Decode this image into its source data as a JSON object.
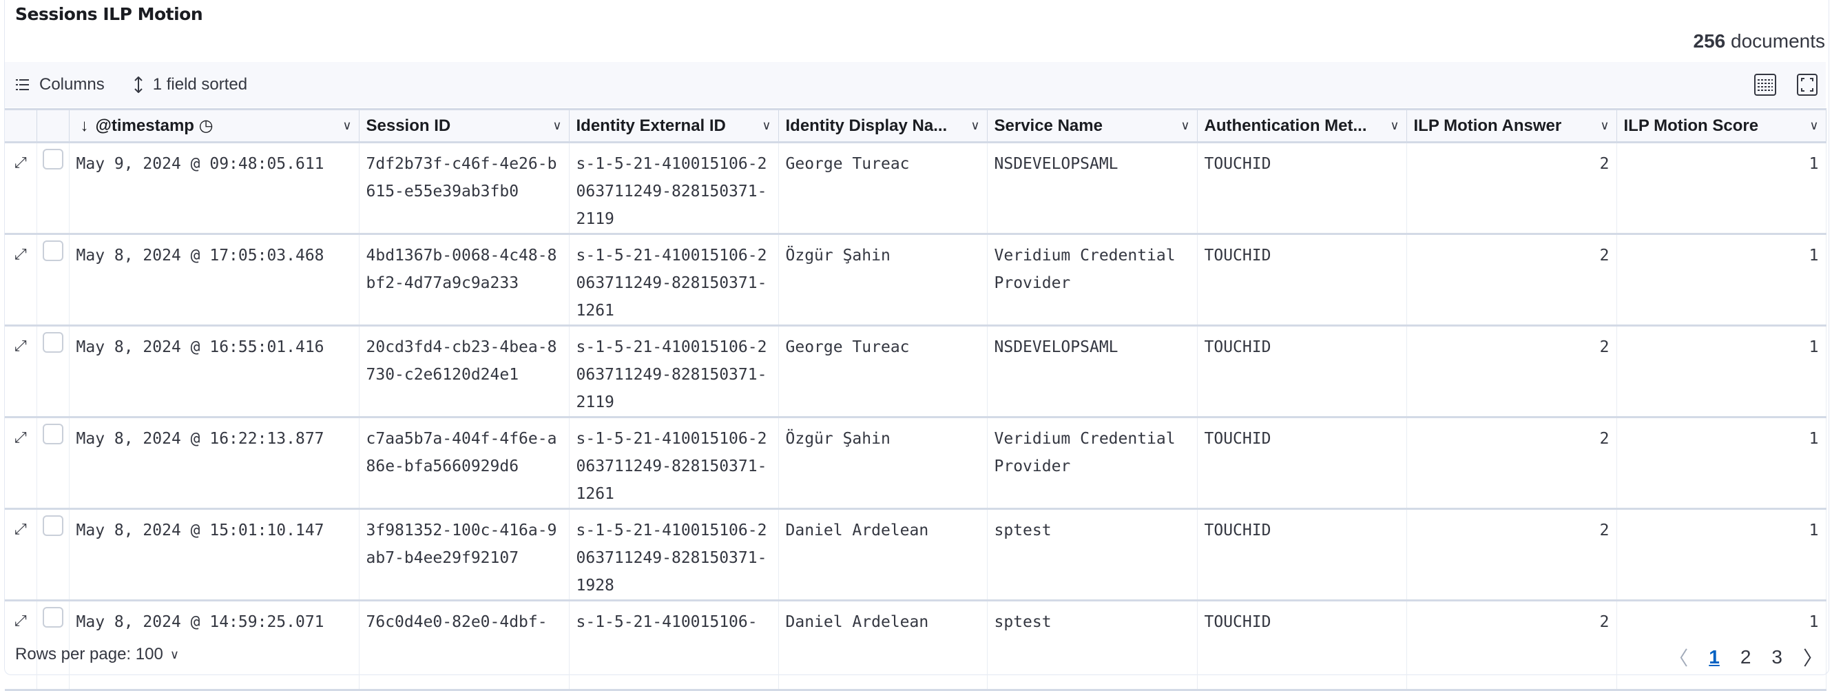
{
  "panel": {
    "title": "Sessions ILP Motion",
    "count": "256",
    "count_label": "documents"
  },
  "toolbar": {
    "columns_label": "Columns",
    "sort_label": "1 field sorted",
    "icons": [
      "list-icon",
      "sort-icon",
      "density-icon",
      "fullscreen-icon"
    ]
  },
  "columns": [
    "@timestamp",
    "Session ID",
    "Identity External ID",
    "Identity Display Na...",
    "Service Name",
    "Authentication Met...",
    "ILP Motion Answer",
    "ILP Motion Score"
  ],
  "rows": [
    {
      "timestamp": "May 9, 2024 @ 09:48:05.611",
      "session": "7df2b73f-c46f-4e26-b615-e55e39ab3fb0",
      "ext": "s-1-5-21-410015106-2063711249-828150371-2119",
      "name": "George Tureac",
      "service": "NSDEVELOPSAML",
      "auth": "TOUCHID",
      "answer": "2",
      "score": "1"
    },
    {
      "timestamp": "May 8, 2024 @ 17:05:03.468",
      "session": "4bd1367b-0068-4c48-8bf2-4d77a9c9a233",
      "ext": "s-1-5-21-410015106-2063711249-828150371-1261",
      "name": "Özgür Şahin",
      "service": "Veridium Credential Provider",
      "auth": "TOUCHID",
      "answer": "2",
      "score": "1"
    },
    {
      "timestamp": "May 8, 2024 @ 16:55:01.416",
      "session": "20cd3fd4-cb23-4bea-8730-c2e6120d24e1",
      "ext": "s-1-5-21-410015106-2063711249-828150371-2119",
      "name": "George Tureac",
      "service": "NSDEVELOPSAML",
      "auth": "TOUCHID",
      "answer": "2",
      "score": "1"
    },
    {
      "timestamp": "May 8, 2024 @ 16:22:13.877",
      "session": "c7aa5b7a-404f-4f6e-a86e-bfa5660929d6",
      "ext": "s-1-5-21-410015106-2063711249-828150371-1261",
      "name": "Özgür Şahin",
      "service": "Veridium Credential Provider",
      "auth": "TOUCHID",
      "answer": "2",
      "score": "1"
    },
    {
      "timestamp": "May 8, 2024 @ 15:01:10.147",
      "session": "3f981352-100c-416a-9ab7-b4ee29f92107",
      "ext": "s-1-5-21-410015106-2063711249-828150371-1928",
      "name": "Daniel Ardelean",
      "service": "sptest",
      "auth": "TOUCHID",
      "answer": "2",
      "score": "1"
    },
    {
      "timestamp": "May 8, 2024 @ 14:59:25.071",
      "session": "76c0d4e0-82e0-4dbf-",
      "ext": "s-1-5-21-410015106-",
      "name": "Daniel Ardelean",
      "service": "sptest",
      "auth": "TOUCHID",
      "answer": "2",
      "score": "1"
    }
  ],
  "footer": {
    "rows_per_page": "Rows per page: 100",
    "pages": [
      "1",
      "2",
      "3"
    ],
    "current_page": "1"
  }
}
